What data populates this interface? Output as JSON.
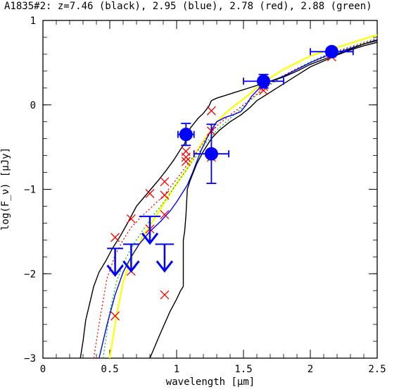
{
  "chart_data": {
    "type": "scatter",
    "title": "A1835#2: z=7.46 (black), 2.95 (blue), 2.78 (red), 2.88 (green)",
    "xlabel": "wavelength [μm]",
    "ylabel": "log(F_ν) [μJy]",
    "xlim": [
      0,
      2.5
    ],
    "ylim": [
      -3,
      1
    ],
    "xticks": [
      0,
      0.5,
      1,
      1.5,
      2,
      2.5
    ],
    "xtick_labels": [
      "0",
      "0.5",
      "1",
      "1.5",
      "2",
      "2.5"
    ],
    "yticks": [
      -3,
      -2,
      -1,
      0,
      1
    ],
    "ytick_labels": [
      "−3",
      "−2",
      "−1",
      "0",
      "1"
    ],
    "grid": false,
    "colors": {
      "detections": "#0000ff",
      "model_z7.46": "#000000",
      "model_z2.95": "#0000ff",
      "model_z2.78": "#ff0000",
      "model_z2.88": "#00cc00",
      "yellow_model": "#ffff00"
    },
    "detections": [
      {
        "x": 1.07,
        "y": -0.35,
        "xerr": 0.06,
        "yerr": 0.13
      },
      {
        "x": 1.26,
        "y": -0.58,
        "xerr": 0.13,
        "yerr": 0.35
      },
      {
        "x": 1.65,
        "y": 0.28,
        "xerr": 0.15,
        "yerr": 0.08
      },
      {
        "x": 2.16,
        "y": 0.63,
        "xerr": 0.16,
        "yerr": 0.05
      }
    ],
    "upper_limits": [
      {
        "x": 0.54,
        "y": -1.7,
        "xerr": 0.06
      },
      {
        "x": 0.66,
        "y": -1.65,
        "xerr": 0.06
      },
      {
        "x": 0.8,
        "y": -1.32,
        "xerr": 0.08
      },
      {
        "x": 0.91,
        "y": -1.65,
        "xerr": 0.07
      }
    ],
    "model_points_red": [
      {
        "x": 0.54,
        "y": -1.57
      },
      {
        "x": 0.54,
        "y": -2.5
      },
      {
        "x": 0.66,
        "y": -1.35
      },
      {
        "x": 0.66,
        "y": -1.97
      },
      {
        "x": 0.8,
        "y": -1.05
      },
      {
        "x": 0.8,
        "y": -1.47
      },
      {
        "x": 0.91,
        "y": -0.91
      },
      {
        "x": 0.91,
        "y": -1.07
      },
      {
        "x": 0.91,
        "y": -1.3
      },
      {
        "x": 0.91,
        "y": -2.25
      },
      {
        "x": 1.07,
        "y": -0.55
      },
      {
        "x": 1.07,
        "y": -0.62
      },
      {
        "x": 1.07,
        "y": -0.67
      },
      {
        "x": 1.26,
        "y": -0.07
      },
      {
        "x": 1.26,
        "y": -0.31
      },
      {
        "x": 1.26,
        "y": -0.62
      },
      {
        "x": 1.65,
        "y": 0.17
      },
      {
        "x": 1.65,
        "y": 0.22
      },
      {
        "x": 2.16,
        "y": 0.57
      },
      {
        "x": 2.16,
        "y": 0.61
      }
    ],
    "models": {
      "black": [
        [
          0.28,
          -3.0
        ],
        [
          0.3,
          -2.8
        ],
        [
          0.32,
          -2.55
        ],
        [
          0.35,
          -2.35
        ],
        [
          0.38,
          -2.15
        ],
        [
          0.42,
          -1.98
        ],
        [
          0.47,
          -1.85
        ],
        [
          0.52,
          -1.7
        ],
        [
          0.58,
          -1.55
        ],
        [
          0.64,
          -1.38
        ],
        [
          0.7,
          -1.2
        ],
        [
          0.78,
          -1.05
        ],
        [
          0.86,
          -0.9
        ],
        [
          0.92,
          -0.78
        ],
        [
          0.98,
          -0.65
        ],
        [
          1.02,
          -0.55
        ],
        [
          1.04,
          -0.5
        ],
        [
          1.06,
          -0.46
        ],
        [
          1.08,
          -0.35
        ],
        [
          1.1,
          -0.28
        ],
        [
          1.13,
          -0.22
        ],
        [
          1.16,
          -0.16
        ],
        [
          1.2,
          -0.1
        ],
        [
          1.24,
          -0.02
        ],
        [
          1.26,
          0.05
        ],
        [
          1.3,
          0.08
        ],
        [
          1.34,
          0.1
        ],
        [
          1.4,
          0.13
        ],
        [
          1.46,
          0.16
        ],
        [
          1.52,
          0.19
        ],
        [
          1.6,
          0.23
        ],
        [
          1.7,
          0.28
        ],
        [
          1.8,
          0.33
        ],
        [
          1.9,
          0.4
        ],
        [
          2.0,
          0.48
        ],
        [
          2.1,
          0.54
        ],
        [
          2.2,
          0.6
        ],
        [
          2.3,
          0.66
        ],
        [
          2.4,
          0.72
        ],
        [
          2.5,
          0.76
        ]
      ],
      "black2": [
        [
          0.8,
          -3.0
        ],
        [
          0.88,
          -2.7
        ],
        [
          0.95,
          -2.45
        ],
        [
          1.0,
          -2.3
        ],
        [
          1.03,
          -2.2
        ],
        [
          1.05,
          -2.15
        ],
        [
          1.05,
          -1.6
        ],
        [
          1.06,
          -1.5
        ],
        [
          1.07,
          -1.3
        ],
        [
          1.08,
          -1.0
        ],
        [
          1.1,
          -0.9
        ],
        [
          1.15,
          -0.7
        ],
        [
          1.2,
          -0.55
        ],
        [
          1.26,
          -0.4
        ],
        [
          1.32,
          -0.3
        ],
        [
          1.4,
          -0.2
        ],
        [
          1.48,
          -0.12
        ],
        [
          1.55,
          -0.03
        ],
        [
          1.6,
          0.05
        ],
        [
          1.7,
          0.15
        ],
        [
          1.8,
          0.25
        ],
        [
          1.9,
          0.35
        ],
        [
          2.0,
          0.45
        ],
        [
          2.1,
          0.52
        ],
        [
          2.2,
          0.59
        ],
        [
          2.3,
          0.65
        ],
        [
          2.4,
          0.7
        ],
        [
          2.5,
          0.74
        ]
      ],
      "blue": [
        [
          0.42,
          -3.0
        ],
        [
          0.48,
          -2.6
        ],
        [
          0.54,
          -2.25
        ],
        [
          0.6,
          -1.98
        ],
        [
          0.66,
          -1.8
        ],
        [
          0.72,
          -1.65
        ],
        [
          0.8,
          -1.5
        ],
        [
          0.88,
          -1.38
        ],
        [
          0.95,
          -1.26
        ],
        [
          1.0,
          -1.15
        ],
        [
          1.04,
          -1.05
        ],
        [
          1.08,
          -0.95
        ],
        [
          1.12,
          -0.8
        ],
        [
          1.18,
          -0.55
        ],
        [
          1.24,
          -0.35
        ],
        [
          1.3,
          -0.2
        ],
        [
          1.36,
          -0.15
        ],
        [
          1.42,
          -0.12
        ],
        [
          1.48,
          -0.08
        ],
        [
          1.52,
          0.0
        ],
        [
          1.56,
          0.1
        ],
        [
          1.62,
          0.2
        ],
        [
          1.7,
          0.28
        ],
        [
          1.8,
          0.34
        ],
        [
          1.9,
          0.42
        ],
        [
          2.0,
          0.5
        ],
        [
          2.1,
          0.57
        ],
        [
          2.2,
          0.62
        ],
        [
          2.3,
          0.67
        ],
        [
          2.4,
          0.72
        ],
        [
          2.5,
          0.77
        ]
      ],
      "red": [
        [
          0.38,
          -3.0
        ],
        [
          0.43,
          -2.5
        ],
        [
          0.48,
          -2.05
        ],
        [
          0.54,
          -1.78
        ],
        [
          0.6,
          -1.6
        ],
        [
          0.66,
          -1.45
        ],
        [
          0.74,
          -1.32
        ],
        [
          0.82,
          -1.2
        ],
        [
          0.9,
          -1.08
        ],
        [
          0.98,
          -0.92
        ],
        [
          1.06,
          -0.75
        ],
        [
          1.14,
          -0.58
        ],
        [
          1.22,
          -0.4
        ],
        [
          1.3,
          -0.25
        ],
        [
          1.4,
          -0.12
        ],
        [
          1.5,
          0.0
        ],
        [
          1.6,
          0.13
        ],
        [
          1.7,
          0.25
        ],
        [
          1.8,
          0.35
        ],
        [
          1.9,
          0.43
        ],
        [
          2.0,
          0.5
        ],
        [
          2.1,
          0.56
        ],
        [
          2.2,
          0.63
        ],
        [
          2.3,
          0.68
        ],
        [
          2.4,
          0.73
        ],
        [
          2.5,
          0.78
        ]
      ],
      "green": [
        [
          0.45,
          -3.0
        ],
        [
          0.5,
          -2.45
        ],
        [
          0.55,
          -2.1
        ],
        [
          0.6,
          -1.88
        ],
        [
          0.66,
          -1.7
        ],
        [
          0.74,
          -1.5
        ],
        [
          0.82,
          -1.32
        ],
        [
          0.9,
          -1.16
        ],
        [
          0.98,
          -0.98
        ],
        [
          1.06,
          -0.8
        ],
        [
          1.14,
          -0.62
        ],
        [
          1.22,
          -0.45
        ],
        [
          1.3,
          -0.3
        ],
        [
          1.4,
          -0.16
        ],
        [
          1.5,
          -0.02
        ],
        [
          1.6,
          0.12
        ],
        [
          1.7,
          0.24
        ],
        [
          1.8,
          0.34
        ],
        [
          1.9,
          0.43
        ],
        [
          2.0,
          0.51
        ],
        [
          2.1,
          0.58
        ],
        [
          2.2,
          0.64
        ],
        [
          2.3,
          0.69
        ],
        [
          2.4,
          0.74
        ],
        [
          2.5,
          0.79
        ]
      ],
      "yellow": [
        [
          0.5,
          -3.0
        ],
        [
          0.55,
          -2.5
        ],
        [
          0.6,
          -2.1
        ],
        [
          0.66,
          -1.82
        ],
        [
          0.74,
          -1.58
        ],
        [
          0.82,
          -1.38
        ],
        [
          0.9,
          -1.18
        ],
        [
          0.98,
          -0.98
        ],
        [
          1.06,
          -0.8
        ],
        [
          1.14,
          -0.58
        ],
        [
          1.22,
          -0.38
        ],
        [
          1.3,
          -0.2
        ],
        [
          1.4,
          -0.05
        ],
        [
          1.5,
          0.07
        ],
        [
          1.6,
          0.2
        ],
        [
          1.7,
          0.32
        ],
        [
          1.8,
          0.42
        ],
        [
          1.9,
          0.5
        ],
        [
          2.0,
          0.58
        ],
        [
          2.1,
          0.63
        ],
        [
          2.2,
          0.68
        ],
        [
          2.3,
          0.73
        ],
        [
          2.4,
          0.78
        ],
        [
          2.5,
          0.83
        ]
      ]
    }
  }
}
